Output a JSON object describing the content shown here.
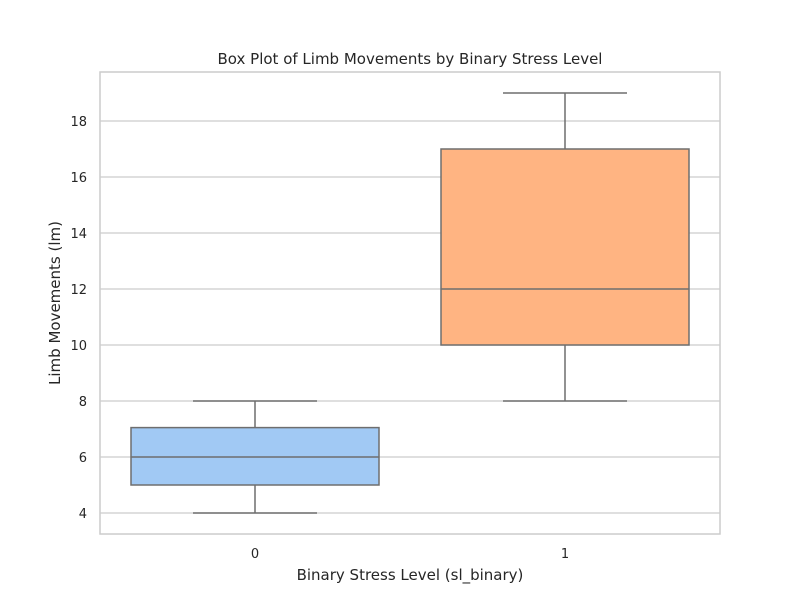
{
  "chart_data": {
    "type": "box",
    "title": "Box Plot of Limb Movements by Binary Stress Level",
    "xlabel": "Binary Stress Level (sl_binary)",
    "ylabel": "Limb Movements (lm)",
    "categories": [
      "0",
      "1"
    ],
    "yticks": [
      4,
      6,
      8,
      10,
      12,
      14,
      16,
      18
    ],
    "ylim": [
      3.25,
      19.75
    ],
    "grid": true,
    "boxes": [
      {
        "category": "0",
        "min": 4,
        "q1": 5,
        "median": 6,
        "q3": 7.05,
        "max": 8,
        "color": "#a1c9f4"
      },
      {
        "category": "1",
        "min": 8,
        "q1": 10,
        "median": 12,
        "q3": 17,
        "max": 19,
        "color": "#ffb482"
      }
    ]
  },
  "colors": {
    "grid": "#cccccc",
    "frame": "#cccccc",
    "box_edge": "#6e6e6e",
    "text": "#262626"
  }
}
